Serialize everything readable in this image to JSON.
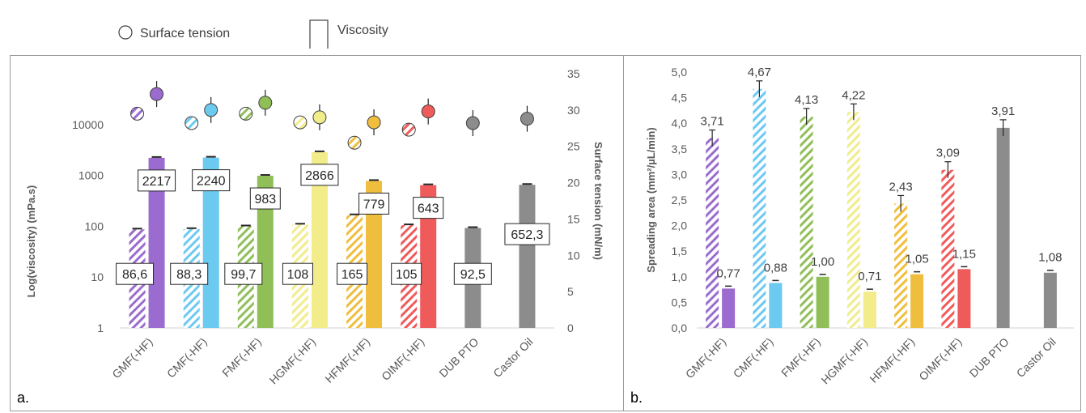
{
  "legend": {
    "circle_label": "Surface tension",
    "bar_label": "Viscosity"
  },
  "colors": {
    "GMF(-HF)": "#9b6bcf",
    "CMF(-HF)": "#6cc9f0",
    "FMF(-HF)": "#8fbf56",
    "HGMF(-HF)": "#f2ec8a",
    "HFMF(-HF)": "#efbe3e",
    "OIMF(-HF)": "#ef5b5b",
    "DUB PTO": "#8c8c8c",
    "Castor Oil": "#8c8c8c"
  },
  "chart_data": [
    {
      "type": "bar",
      "panel_label": "a.",
      "categories": [
        "GMF(-HF)",
        "CMF(-HF)",
        "FMF(-HF)",
        "HGMF(-HF)",
        "HFMF(-HF)",
        "OIMF(-HF)",
        "DUB PTO",
        "Castor Oil"
      ],
      "ylabel": "Log(viscosity)  (mPa.s)",
      "y2label": "Surface tension (mN/m)",
      "yscale": "log",
      "ylim": [
        1,
        100000
      ],
      "yticks": [
        "1",
        "10",
        "100",
        "1000",
        "10000"
      ],
      "y2lim": [
        0,
        35
      ],
      "y2ticks": [
        "0",
        "5",
        "10",
        "15",
        "20",
        "25",
        "30",
        "35"
      ],
      "series": [
        {
          "name": "",
          "pattern": "hatched",
          "values": [
            86.6,
            88.3,
            99.7,
            108,
            165,
            105,
            null,
            null
          ],
          "labels": [
            "86,6",
            "88,3",
            "99,7",
            "108",
            "165",
            "105",
            "",
            ""
          ]
        },
        {
          "name": "",
          "pattern": "solid",
          "values": [
            2217,
            2240,
            983,
            2866,
            779,
            643,
            92.5,
            652.3
          ],
          "labels": [
            "2217",
            "2240",
            "983",
            "2866",
            "779",
            "643",
            "92,5",
            "652,3"
          ]
        }
      ],
      "surface_tension": {
        "hatched": [
          29.5,
          28.2,
          29.5,
          28.3,
          25.5,
          27.3,
          null,
          null
        ],
        "solid": [
          32.2,
          30.0,
          31.0,
          29.0,
          28.3,
          29.8,
          28.2,
          28.8
        ]
      }
    },
    {
      "type": "bar",
      "panel_label": "b.",
      "categories": [
        "GMF(-HF)",
        "CMF(-HF)",
        "FMF(-HF)",
        "HGMF(-HF)",
        "HFMF(-HF)",
        "OIMF(-HF)",
        "DUB PTO",
        "Castor Oil"
      ],
      "ylabel": "Spreading area (mm²/µL/min)",
      "ylim": [
        0,
        5.0
      ],
      "yticks": [
        "0,0",
        "0,5",
        "1,0",
        "1,5",
        "2,0",
        "2,5",
        "3,0",
        "3,5",
        "4,0",
        "4,5",
        "5,0"
      ],
      "series": [
        {
          "name": "",
          "pattern": "hatched",
          "values": [
            3.71,
            4.67,
            4.13,
            4.22,
            2.43,
            3.09,
            3.91,
            null
          ],
          "labels": [
            "3,71",
            "4,67",
            "4,13",
            "4,22",
            "2,43",
            "3,09",
            "3,91",
            ""
          ]
        },
        {
          "name": "",
          "pattern": "solid",
          "values": [
            0.77,
            0.88,
            1.0,
            0.71,
            1.05,
            1.15,
            null,
            1.08
          ],
          "labels": [
            "0,77",
            "0,88",
            "1,00",
            "0,71",
            "1,05",
            "1,15",
            "",
            "1,08"
          ]
        }
      ]
    }
  ]
}
